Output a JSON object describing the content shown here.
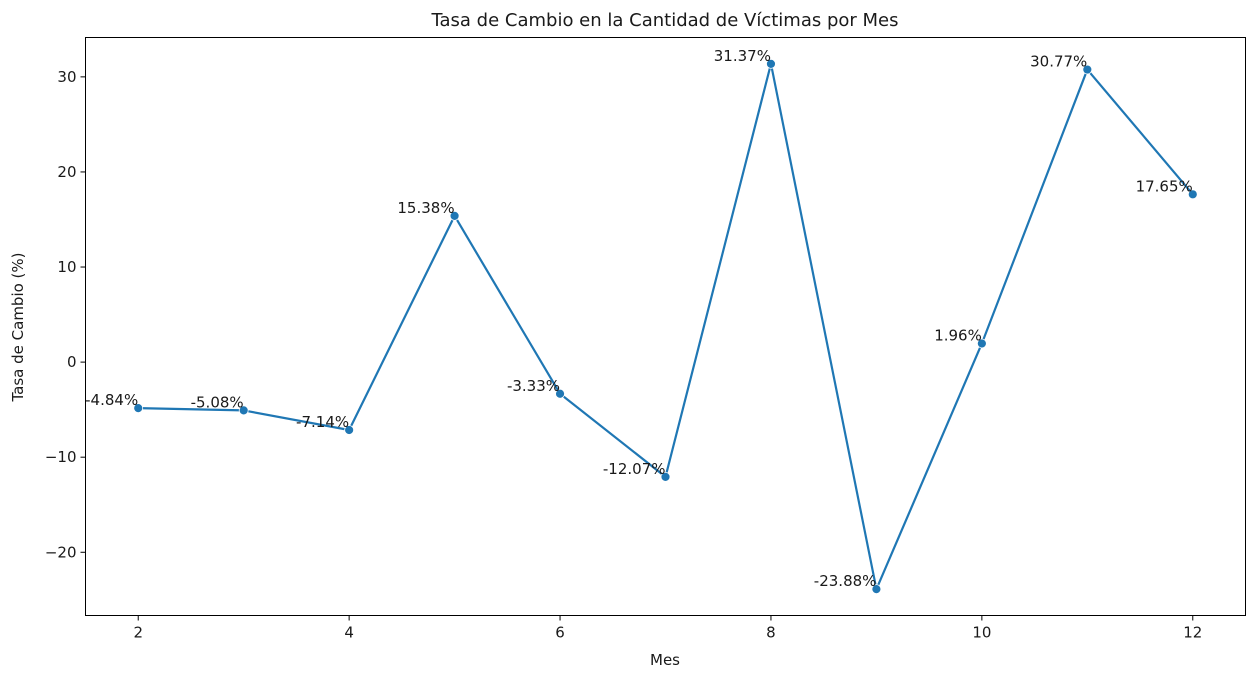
{
  "chart_data": {
    "type": "line",
    "title": "Tasa de Cambio en la Cantidad de Víctimas por Mes",
    "xlabel": "Mes",
    "ylabel": "Tasa de Cambio (%)",
    "x": [
      2,
      3,
      4,
      5,
      6,
      7,
      8,
      9,
      10,
      11,
      12
    ],
    "series": [
      {
        "values": [
          -4.84,
          -5.08,
          -7.14,
          15.38,
          -3.33,
          -12.07,
          31.37,
          -23.88,
          1.96,
          30.77,
          17.65
        ],
        "data_labels": [
          "-4.84%",
          "-5.08%",
          "-7.14%",
          "15.38%",
          "-3.33%",
          "-12.07%",
          "31.37%",
          "-23.88%",
          "1.96%",
          "30.77%",
          "17.65%"
        ],
        "color": "#1f77b4"
      }
    ],
    "x_ticks": [
      2,
      4,
      6,
      8,
      10,
      12
    ],
    "x_tick_labels": [
      "2",
      "4",
      "6",
      "8",
      "10",
      "12"
    ],
    "y_ticks": [
      -20,
      -10,
      0,
      10,
      20,
      30
    ],
    "y_tick_labels": [
      "−20",
      "−10",
      "0",
      "10",
      "20",
      "30"
    ],
    "xlim": [
      1.5,
      12.5
    ],
    "ylim": [
      -26.65,
      34.14
    ],
    "grid": false,
    "legend": "none"
  }
}
